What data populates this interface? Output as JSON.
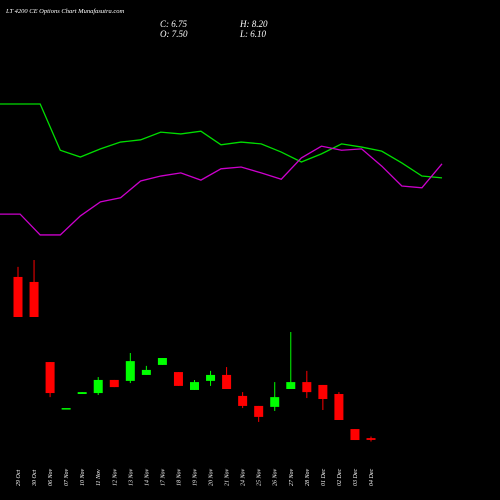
{
  "chart_data": {
    "type": "candlestick",
    "title": "LT 4200 CE Options Chart Munafasutra.com",
    "ohlc_texts": [
      "C: 6.75",
      "H: 8.20",
      "O: 7.50",
      "L: 6.10"
    ],
    "categories": [
      "29 Oct",
      "30 Oct",
      "06 Nov",
      "07 Nov",
      "10 Nov",
      "11 Nov",
      "12 Nov",
      "13 Nov",
      "14 Nov",
      "17 Nov",
      "18 Nov",
      "19 Nov",
      "20 Nov",
      "21 Nov",
      "24 Nov",
      "25 Nov",
      "26 Nov",
      "27 Nov",
      "28 Nov",
      "01 Dec",
      "02 Dec",
      "03 Dec",
      "04 Dec"
    ],
    "open": [
      75.1,
      73.0,
      39.4,
      20.1,
      26.0,
      26.4,
      31.9,
      31.5,
      34.0,
      38.2,
      35.2,
      27.7,
      31.5,
      34.0,
      25.2,
      21.0,
      20.6,
      28.1,
      31.0,
      29.8,
      26.0,
      11.3,
      7.5
    ],
    "high": [
      79.3,
      82.2,
      39.4,
      20.1,
      26.8,
      33.1,
      31.9,
      43.2,
      37.8,
      41.1,
      35.2,
      31.9,
      35.7,
      37.3,
      26.8,
      21.0,
      31.0,
      52.0,
      35.7,
      29.8,
      26.8,
      11.3,
      8.2
    ],
    "low": [
      58.3,
      58.3,
      24.7,
      20.1,
      26.0,
      25.6,
      28.9,
      30.6,
      34.0,
      38.2,
      29.4,
      27.7,
      29.4,
      28.1,
      20.1,
      14.3,
      18.9,
      28.1,
      24.3,
      19.3,
      15.1,
      6.7,
      6.1
    ],
    "close": [
      58.3,
      58.3,
      26.4,
      20.1,
      26.8,
      31.9,
      28.9,
      39.8,
      36.1,
      41.1,
      29.4,
      31.0,
      34.0,
      28.1,
      21.0,
      16.4,
      24.7,
      31.0,
      26.8,
      23.9,
      15.1,
      6.7,
      6.75
    ],
    "up_color": "#00ff00",
    "down_color": "#ff0000",
    "ylim": [
      0,
      190
    ],
    "series": [
      {
        "color": "#00dd00",
        "axis": "y2",
        "values": [
          77.7,
          77.7,
          77.7,
          67.5,
          66.0,
          67.8,
          69.3,
          69.8,
          71.5,
          71.1,
          71.7,
          68.7,
          69.3,
          68.9,
          67.1,
          64.9,
          66.7,
          68.9,
          68.2,
          67.3,
          64.7,
          61.8,
          61.4
        ]
      },
      {
        "color": "#cc00cc",
        "axis": "y2",
        "values": [
          53.4,
          53.4,
          48.8,
          48.8,
          53.0,
          56.1,
          57.0,
          60.7,
          61.8,
          62.5,
          60.9,
          63.4,
          63.8,
          62.5,
          61.1,
          65.8,
          68.4,
          67.5,
          67.8,
          64.0,
          59.6,
          59.2,
          64.5
        ]
      }
    ],
    "y2lim": [
      0,
      100
    ]
  }
}
